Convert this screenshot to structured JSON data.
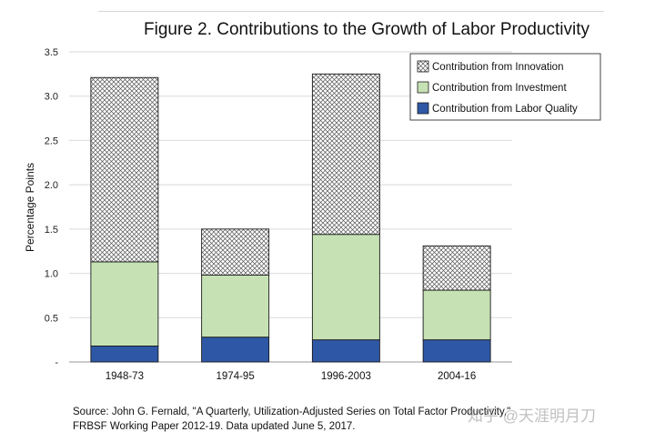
{
  "figure_title": "Figure 2.  Contributions to the Growth of Labor Productivity",
  "source_line1": "Source:  John G. Fernald, \"A Quarterly, Utilization-Adjusted Series on Total Factor Productivity,\"",
  "source_line2": "FRBSF Working Paper 2012-19.  Data updated June 5, 2017.",
  "watermark": "知乎 @天涯明月刀",
  "colors": {
    "labor": "#2e58a6",
    "investment": "#c6e2b4",
    "innovation_pattern": "#555555",
    "grid": "#d9d9d9",
    "axis": "#999999"
  },
  "chart_data": {
    "type": "bar",
    "stacked": true,
    "title": "Figure 2.  Contributions to the Growth of Labor Productivity",
    "xlabel": "",
    "ylabel": "Percentage Points",
    "ylim": [
      0,
      3.5
    ],
    "yticks": [
      "-",
      "0.5",
      "1.0",
      "1.5",
      "2.0",
      "2.5",
      "3.0",
      "3.5"
    ],
    "grid": true,
    "legend_position": "top-right",
    "categories": [
      "1948-73",
      "1974-95",
      "1996-2003",
      "2004-16"
    ],
    "series": [
      {
        "name": "Contribution from Labor Quality",
        "values": [
          0.18,
          0.28,
          0.25,
          0.25
        ]
      },
      {
        "name": "Contribution from Investment",
        "values": [
          0.95,
          0.7,
          1.19,
          0.56
        ]
      },
      {
        "name": "Contribution from Innovation",
        "values": [
          2.08,
          0.52,
          1.81,
          0.5
        ]
      }
    ],
    "legend_order": [
      2,
      1,
      0
    ]
  }
}
